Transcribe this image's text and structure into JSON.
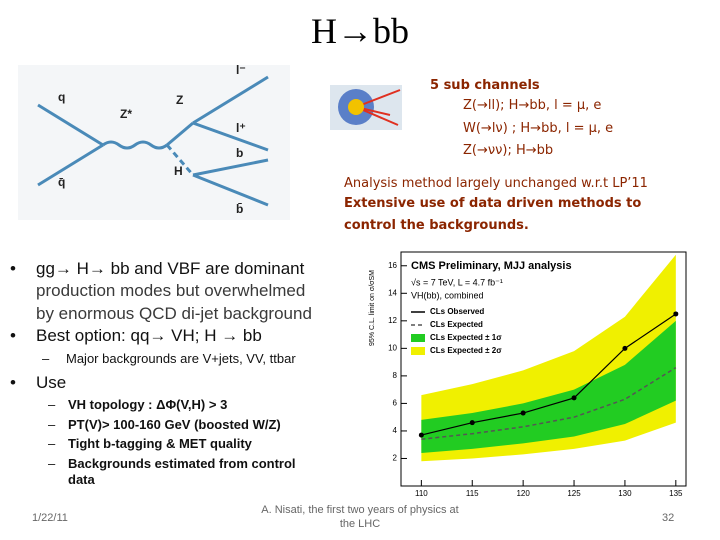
{
  "title": "H→bb",
  "diagram": {
    "labels": [
      "q",
      "q̄",
      "Z*",
      "Z",
      "l⁻",
      "l⁺",
      "b",
      "H",
      "b̄"
    ]
  },
  "channels": {
    "heading": "5 sub channels",
    "lines": [
      "Z(→ll); H→bb, l = μ, e",
      "W(→lν) ; H→bb, l = μ, e",
      "Z(→νν); H→bb"
    ]
  },
  "analysis": {
    "line": "Analysis method largely unchanged w.r.t  LP’11",
    "bold_lines": [
      "Extensive use of data driven methods to",
      "control the backgrounds."
    ]
  },
  "bullets": [
    {
      "lines": [
        "gg→ H→ bb and VBF are dominant",
        "production modes but overwhelmed",
        "by enormous QCD di-jet background"
      ]
    },
    {
      "lines": [
        "Best option:  qq→ VH; H → bb"
      ],
      "sub": [
        "Major backgrounds are V+jets, VV, ttbar"
      ]
    },
    {
      "lines": [
        "Use"
      ],
      "sub": [
        "VH topology : ΔΦ(V,H) > 3",
        "PT(V)> 100-160 GeV (boosted W/Z)",
        "Tight b-tagging & MET quality",
        "Backgrounds estimated from control",
        "data"
      ]
    }
  ],
  "footer": {
    "date": "1/22/11",
    "author": [
      "A. Nisati, the first two years of physics at",
      "the LHC"
    ],
    "page": "32"
  },
  "chart_data": {
    "type": "limit",
    "title": "CMS Preliminary, MJJ analysis",
    "subtitle": [
      "√s = 7 TeV, L = 4.7 fb⁻¹",
      "VH(bb), combined"
    ],
    "y_label": "95% C.L. limit on σ/σSM",
    "x": [
      110,
      115,
      120,
      125,
      130,
      135
    ],
    "xlim": [
      108,
      136
    ],
    "xticks": [
      110,
      115,
      120,
      125,
      130,
      135
    ],
    "ylim": [
      0,
      17
    ],
    "yticks": [
      2,
      4,
      6,
      8,
      10,
      12,
      14,
      16
    ],
    "series": [
      {
        "name": "CLs Observed",
        "color": "#000000",
        "values": [
          3.7,
          4.6,
          5.3,
          6.4,
          10.0,
          12.5
        ]
      },
      {
        "name": "CLs Expected",
        "color": "#555555",
        "values": [
          3.4,
          3.8,
          4.3,
          5.0,
          6.3,
          8.6
        ]
      },
      {
        "name": "CLs Expected ± 1σ",
        "color": "#22cc22",
        "low": [
          2.4,
          2.7,
          3.1,
          3.6,
          4.5,
          6.2
        ],
        "high": [
          4.8,
          5.3,
          6.0,
          7.0,
          8.8,
          12.0
        ]
      },
      {
        "name": "CLs Expected ± 2σ",
        "color": "#f0f000",
        "low": [
          1.8,
          2.0,
          2.3,
          2.7,
          3.3,
          4.6
        ],
        "high": [
          6.6,
          7.4,
          8.4,
          9.8,
          12.3,
          16.8
        ]
      }
    ]
  }
}
